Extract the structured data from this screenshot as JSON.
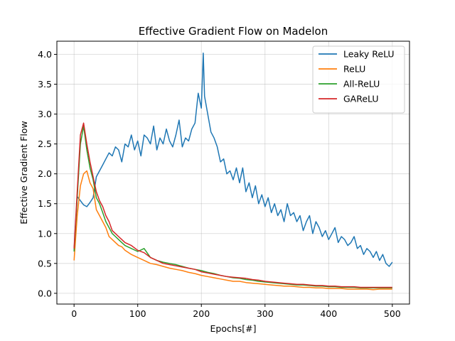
{
  "chart_data": {
    "type": "line",
    "title": "Effective Gradient Flow on Madelon",
    "xlabel": "Epochs[#]",
    "ylabel": "Effective Gradient Flow",
    "xlim": [
      -27,
      527
    ],
    "ylim": [
      -0.18,
      4.22
    ],
    "xticks": [
      0,
      100,
      200,
      300,
      400,
      500
    ],
    "xtick_labels": [
      "0",
      "100",
      "200",
      "300",
      "400",
      "500"
    ],
    "yticks": [
      0.0,
      0.5,
      1.0,
      1.5,
      2.0,
      2.5,
      3.0,
      3.5,
      4.0
    ],
    "ytick_labels": [
      "0.0",
      "0.5",
      "1.0",
      "1.5",
      "2.0",
      "2.5",
      "3.0",
      "3.5",
      "4.0"
    ],
    "grid": true,
    "legend_position": "top-right",
    "series": [
      {
        "name": "Leaky ReLU",
        "color": "#1f77b4",
        "x": [
          0,
          5,
          10,
          15,
          20,
          25,
          30,
          35,
          40,
          45,
          50,
          55,
          60,
          65,
          70,
          75,
          80,
          85,
          90,
          95,
          100,
          105,
          110,
          115,
          120,
          125,
          130,
          135,
          140,
          145,
          150,
          155,
          160,
          165,
          170,
          175,
          180,
          185,
          190,
          195,
          200,
          203,
          205,
          210,
          215,
          220,
          225,
          230,
          235,
          240,
          245,
          250,
          255,
          260,
          265,
          270,
          275,
          280,
          285,
          290,
          295,
          300,
          305,
          310,
          315,
          320,
          325,
          330,
          335,
          340,
          345,
          350,
          355,
          360,
          365,
          370,
          375,
          380,
          385,
          390,
          395,
          400,
          405,
          410,
          415,
          420,
          425,
          430,
          435,
          440,
          445,
          450,
          455,
          460,
          465,
          470,
          475,
          480,
          485,
          490,
          495,
          500
        ],
        "y": [
          0.72,
          1.62,
          1.55,
          1.48,
          1.45,
          1.52,
          1.6,
          1.95,
          2.05,
          2.15,
          2.25,
          2.35,
          2.3,
          2.45,
          2.4,
          2.2,
          2.5,
          2.45,
          2.65,
          2.4,
          2.55,
          2.3,
          2.65,
          2.6,
          2.5,
          2.8,
          2.4,
          2.6,
          2.5,
          2.75,
          2.55,
          2.45,
          2.65,
          2.9,
          2.45,
          2.6,
          2.55,
          2.75,
          2.85,
          3.35,
          3.1,
          4.02,
          3.3,
          3.0,
          2.7,
          2.6,
          2.45,
          2.2,
          2.25,
          2.0,
          2.05,
          1.9,
          2.1,
          1.85,
          2.1,
          1.7,
          1.85,
          1.6,
          1.8,
          1.5,
          1.65,
          1.45,
          1.6,
          1.35,
          1.5,
          1.3,
          1.4,
          1.2,
          1.5,
          1.3,
          1.35,
          1.2,
          1.3,
          1.05,
          1.2,
          1.3,
          1.0,
          1.2,
          1.1,
          0.95,
          1.05,
          0.9,
          1.0,
          1.1,
          0.85,
          0.95,
          0.9,
          0.8,
          0.85,
          0.95,
          0.75,
          0.8,
          0.65,
          0.75,
          0.7,
          0.6,
          0.7,
          0.55,
          0.65,
          0.5,
          0.45,
          0.52
        ]
      },
      {
        "name": "ReLU",
        "color": "#ff7f0e",
        "x": [
          0,
          5,
          10,
          15,
          20,
          25,
          30,
          35,
          40,
          45,
          50,
          55,
          60,
          65,
          70,
          75,
          80,
          90,
          100,
          110,
          120,
          130,
          140,
          150,
          160,
          170,
          180,
          190,
          200,
          210,
          220,
          230,
          240,
          250,
          260,
          270,
          280,
          290,
          300,
          310,
          320,
          330,
          340,
          350,
          360,
          370,
          380,
          390,
          400,
          410,
          420,
          430,
          440,
          450,
          460,
          470,
          480,
          490,
          500
        ],
        "y": [
          0.55,
          1.3,
          1.8,
          2.0,
          2.05,
          1.85,
          1.75,
          1.4,
          1.3,
          1.2,
          1.1,
          0.95,
          0.9,
          0.85,
          0.8,
          0.78,
          0.72,
          0.65,
          0.6,
          0.55,
          0.5,
          0.48,
          0.45,
          0.42,
          0.4,
          0.38,
          0.35,
          0.33,
          0.3,
          0.28,
          0.26,
          0.24,
          0.22,
          0.2,
          0.2,
          0.18,
          0.17,
          0.16,
          0.15,
          0.14,
          0.13,
          0.12,
          0.12,
          0.11,
          0.1,
          0.1,
          0.09,
          0.09,
          0.08,
          0.08,
          0.08,
          0.07,
          0.07,
          0.07,
          0.07,
          0.06,
          0.07,
          0.07,
          0.07
        ]
      },
      {
        "name": "All-ReLU",
        "color": "#2ca02c",
        "x": [
          0,
          5,
          10,
          15,
          20,
          25,
          30,
          35,
          40,
          45,
          50,
          55,
          60,
          65,
          70,
          75,
          80,
          90,
          100,
          110,
          120,
          130,
          140,
          150,
          160,
          170,
          180,
          190,
          200,
          210,
          220,
          230,
          240,
          250,
          260,
          270,
          280,
          290,
          300,
          310,
          320,
          330,
          340,
          350,
          360,
          370,
          380,
          390,
          400,
          410,
          420,
          430,
          440,
          450,
          460,
          470,
          480,
          490,
          500
        ],
        "y": [
          0.7,
          1.6,
          2.5,
          2.8,
          2.4,
          2.1,
          1.9,
          1.6,
          1.5,
          1.35,
          1.2,
          1.1,
          1.0,
          0.95,
          0.9,
          0.85,
          0.8,
          0.75,
          0.7,
          0.75,
          0.6,
          0.55,
          0.52,
          0.5,
          0.48,
          0.45,
          0.42,
          0.4,
          0.38,
          0.35,
          0.33,
          0.3,
          0.28,
          0.26,
          0.25,
          0.23,
          0.22,
          0.2,
          0.19,
          0.18,
          0.17,
          0.16,
          0.15,
          0.14,
          0.14,
          0.13,
          0.12,
          0.12,
          0.11,
          0.11,
          0.1,
          0.1,
          0.1,
          0.09,
          0.09,
          0.09,
          0.09,
          0.09,
          0.09
        ]
      },
      {
        "name": "GAReLU",
        "color": "#d62728",
        "x": [
          0,
          5,
          10,
          15,
          20,
          25,
          30,
          35,
          40,
          45,
          50,
          55,
          60,
          65,
          70,
          75,
          80,
          90,
          100,
          110,
          120,
          130,
          140,
          150,
          160,
          170,
          180,
          190,
          200,
          210,
          220,
          230,
          240,
          250,
          260,
          270,
          280,
          290,
          300,
          310,
          320,
          330,
          340,
          350,
          360,
          370,
          380,
          390,
          400,
          410,
          420,
          430,
          440,
          450,
          460,
          470,
          480,
          490,
          500
        ],
        "y": [
          0.75,
          1.7,
          2.65,
          2.85,
          2.5,
          2.2,
          1.95,
          1.7,
          1.55,
          1.45,
          1.3,
          1.2,
          1.05,
          1.0,
          0.95,
          0.9,
          0.85,
          0.8,
          0.72,
          0.68,
          0.6,
          0.55,
          0.5,
          0.48,
          0.46,
          0.44,
          0.42,
          0.4,
          0.36,
          0.34,
          0.32,
          0.3,
          0.28,
          0.27,
          0.26,
          0.25,
          0.23,
          0.22,
          0.2,
          0.19,
          0.18,
          0.17,
          0.16,
          0.15,
          0.15,
          0.14,
          0.13,
          0.13,
          0.12,
          0.12,
          0.11,
          0.11,
          0.11,
          0.1,
          0.1,
          0.1,
          0.1,
          0.1,
          0.1
        ]
      }
    ]
  }
}
